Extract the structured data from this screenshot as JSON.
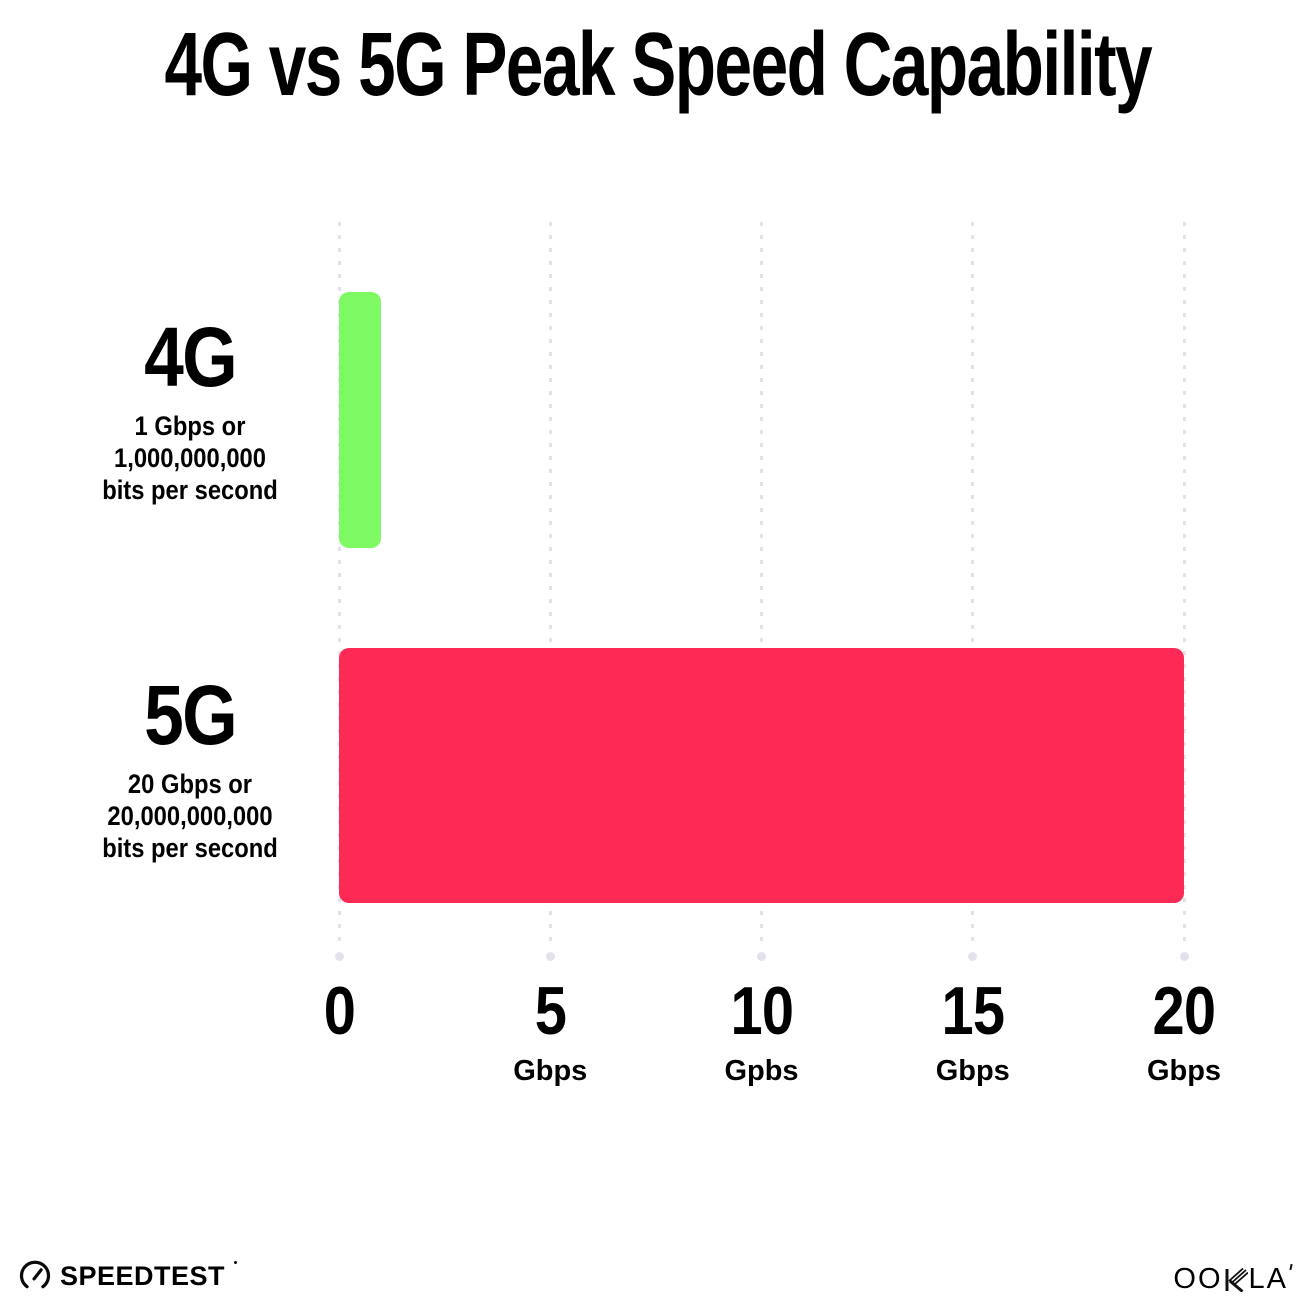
{
  "title": "4G vs 5G Peak Speed Capability",
  "colors": {
    "bar_4g_green": "#7DFA63",
    "bar_5g_pink": "#FC2A55",
    "gridline": "#E2E2EC",
    "text": "#000000",
    "background": "#FFFFFF"
  },
  "chart_data": {
    "type": "bar",
    "orientation": "horizontal",
    "title": "4G vs 5G Peak Speed Capability",
    "xlabel": "",
    "ylabel": "",
    "xlim": [
      0,
      20
    ],
    "grid": "vertical dotted gridlines at 0,5,10,15,20 with round end dots",
    "legend": "none",
    "categories": [
      "4G",
      "5G"
    ],
    "values": [
      1,
      20
    ],
    "unit": "Gbps",
    "bar_colors": [
      "#7DFA63",
      "#FC2A55"
    ],
    "rows": [
      {
        "label": "4G",
        "desc_line1": "1 Gbps or",
        "desc_line2": "1,000,000,000",
        "desc_line3": "bits per second",
        "value": 1
      },
      {
        "label": "5G",
        "desc_line1": "20 Gbps or",
        "desc_line2": "20,000,000,000",
        "desc_line3": "bits per second",
        "value": 20
      }
    ],
    "xticks": [
      {
        "value": 0,
        "label": "0",
        "unit": ""
      },
      {
        "value": 5,
        "label": "5",
        "unit": "Gbps"
      },
      {
        "value": 10,
        "label": "10",
        "unit": "Gpbs"
      },
      {
        "value": 15,
        "label": "15",
        "unit": "Gbps"
      },
      {
        "value": 20,
        "label": "20",
        "unit": "Gbps"
      }
    ]
  },
  "footer": {
    "left_brand": "SPEEDTEST",
    "right_brand": "OOKLA",
    "right_brand_prefix": "OO",
    "right_brand_k": "K",
    "right_brand_suffix": "LA"
  }
}
